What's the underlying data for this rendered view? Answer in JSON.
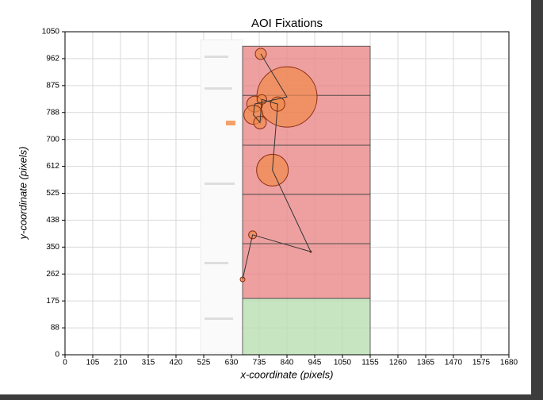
{
  "chart_data": {
    "type": "bubble",
    "title": "AOI Fixations",
    "x_label": "x-coordinate (pixels)",
    "y_label": "y-coordinate (pixels)",
    "xlim": [
      0,
      1680
    ],
    "ylim": [
      0,
      1050
    ],
    "xticks": [
      0,
      105,
      210,
      315,
      420,
      525,
      630,
      735,
      840,
      945,
      1050,
      1155,
      1260,
      1365,
      1470,
      1575,
      1680
    ],
    "yticks": [
      0,
      {
        "value": 87.5,
        "label": "88"
      },
      175,
      {
        "value": 262.5,
        "label": "262"
      },
      350,
      {
        "value": 437.5,
        "label": "438"
      },
      525,
      {
        "value": 612.5,
        "label": "612"
      },
      700,
      {
        "value": 787.5,
        "label": "788"
      },
      875,
      {
        "value": 962.5,
        "label": "962"
      },
      1050
    ],
    "grid": true,
    "aois": [
      {
        "x": [
          672,
          1155
        ],
        "y": [
          843,
          1003
        ],
        "color": "#e88080"
      },
      {
        "x": [
          672,
          1155
        ],
        "y": [
          681,
          843
        ],
        "color": "#e88080"
      },
      {
        "x": [
          672,
          1155
        ],
        "y": [
          521,
          681
        ],
        "color": "#e88080"
      },
      {
        "x": [
          672,
          1155
        ],
        "y": [
          361,
          521
        ],
        "color": "#e88080"
      },
      {
        "x": [
          672,
          1155
        ],
        "y": [
          183,
          361
        ],
        "color": "#e88080"
      },
      {
        "x": [
          672,
          1155
        ],
        "y": [
          0,
          183
        ],
        "color": "#b5dcae"
      }
    ],
    "fixations": {
      "color": "#f08a4b",
      "x": [
        741,
        840,
        718,
        713,
        738,
        745,
        805,
        785,
        930,
        710,
        672
      ],
      "y": [
        978,
        838,
        815,
        780,
        755,
        830,
        815,
        600,
        335,
        390,
        245
      ],
      "radius": [
        21,
        114,
        30,
        36,
        24,
        18,
        27,
        60,
        3,
        15,
        9
      ]
    }
  }
}
